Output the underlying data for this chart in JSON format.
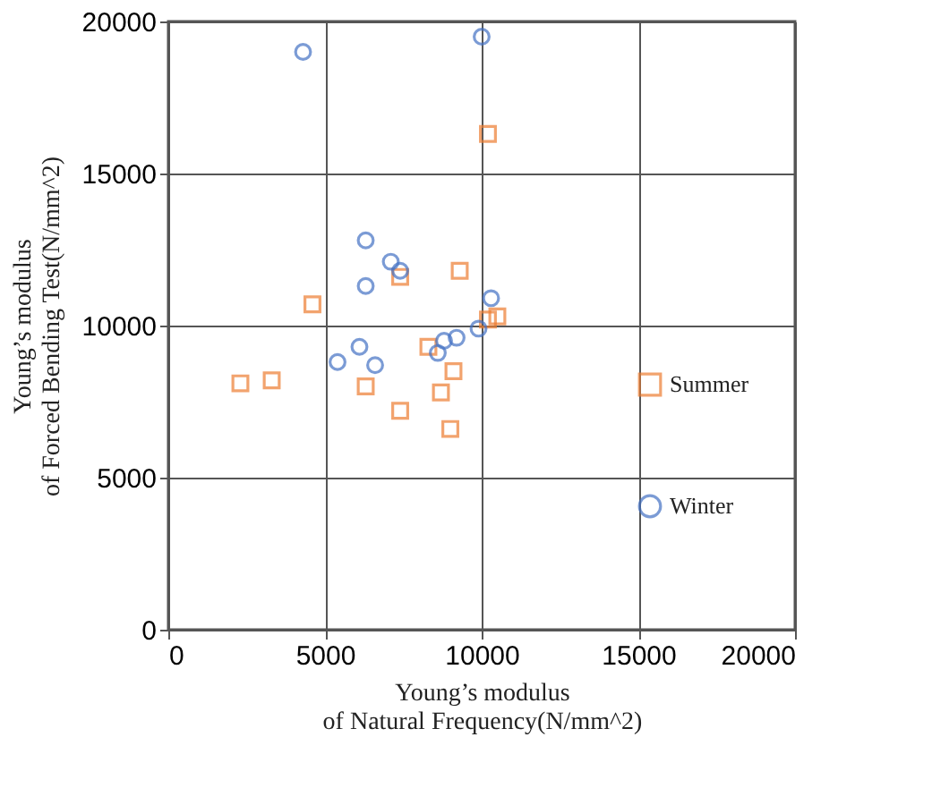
{
  "chart_data": {
    "type": "scatter",
    "xlabel": "Young’s modulus\nof Natural Frequency(N/mm^2)",
    "ylabel": "Young’s modulus\nof Forced Bending Test(N/mm^2)",
    "xlim": [
      0,
      20000
    ],
    "xticks": [
      0,
      5000,
      10000,
      15000,
      20000
    ],
    "ylim": [
      0,
      20000
    ],
    "yticks": [
      0,
      5000,
      10000,
      15000,
      20000
    ],
    "grid": true,
    "legend": "right",
    "series": [
      {
        "name": "Summer",
        "color": "#ed7d31",
        "marker": "square",
        "x": [
          10200,
          7400,
          9300,
          4600,
          10200,
          10500,
          8300,
          9100,
          8700,
          9000,
          6300,
          7400,
          2300,
          3300
        ],
        "values": [
          16300,
          11600,
          11800,
          10700,
          10200,
          10300,
          9300,
          8500,
          7800,
          6600,
          8000,
          7200,
          8100,
          8200
        ]
      },
      {
        "name": "Winter",
        "color": "#4472c4",
        "marker": "circle",
        "x": [
          4300,
          10000,
          6300,
          7100,
          7400,
          6300,
          10300,
          9900,
          9200,
          8800,
          8600,
          6100,
          5400,
          6600
        ],
        "values": [
          19000,
          19500,
          12800,
          12100,
          11800,
          11300,
          10900,
          9900,
          9600,
          9500,
          9100,
          9300,
          8800,
          8700
        ]
      }
    ]
  }
}
